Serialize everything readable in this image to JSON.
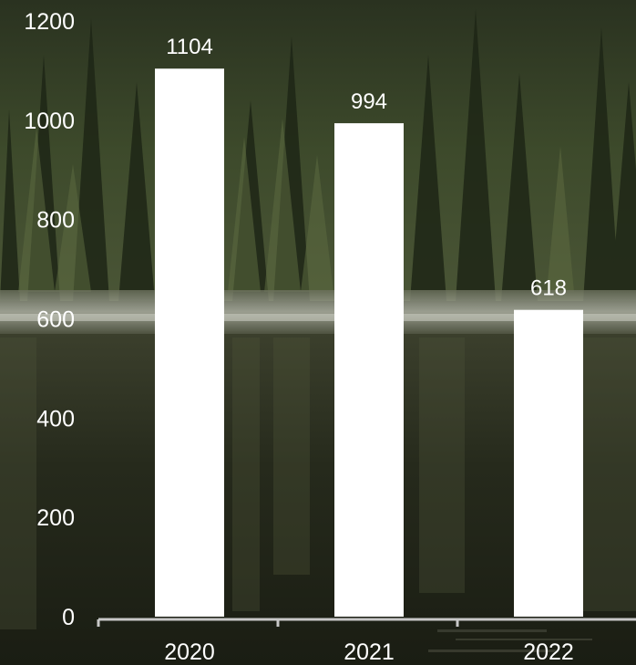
{
  "chart_data": {
    "type": "bar",
    "categories": [
      "2020",
      "2021",
      "2022"
    ],
    "values": [
      1104,
      994,
      618
    ],
    "data_labels": [
      "1104",
      "994",
      "618"
    ],
    "y_ticks": [
      "0",
      "200",
      "400",
      "600",
      "800",
      "1000",
      "1200"
    ],
    "ylim": [
      0,
      1200
    ],
    "title": "",
    "xlabel": "",
    "ylabel": "",
    "grid": false,
    "bar_color": "#ffffff",
    "axis_color": "#c8c8c8"
  },
  "background": {
    "description_colors": {
      "forest_dark": "#1c2215",
      "forest_mid": "#3a4628",
      "forest_light": "#6d7a52",
      "shore": "#9aa08c",
      "water_dark": "#1b1f14",
      "water_mid": "#3b3f2c"
    }
  }
}
